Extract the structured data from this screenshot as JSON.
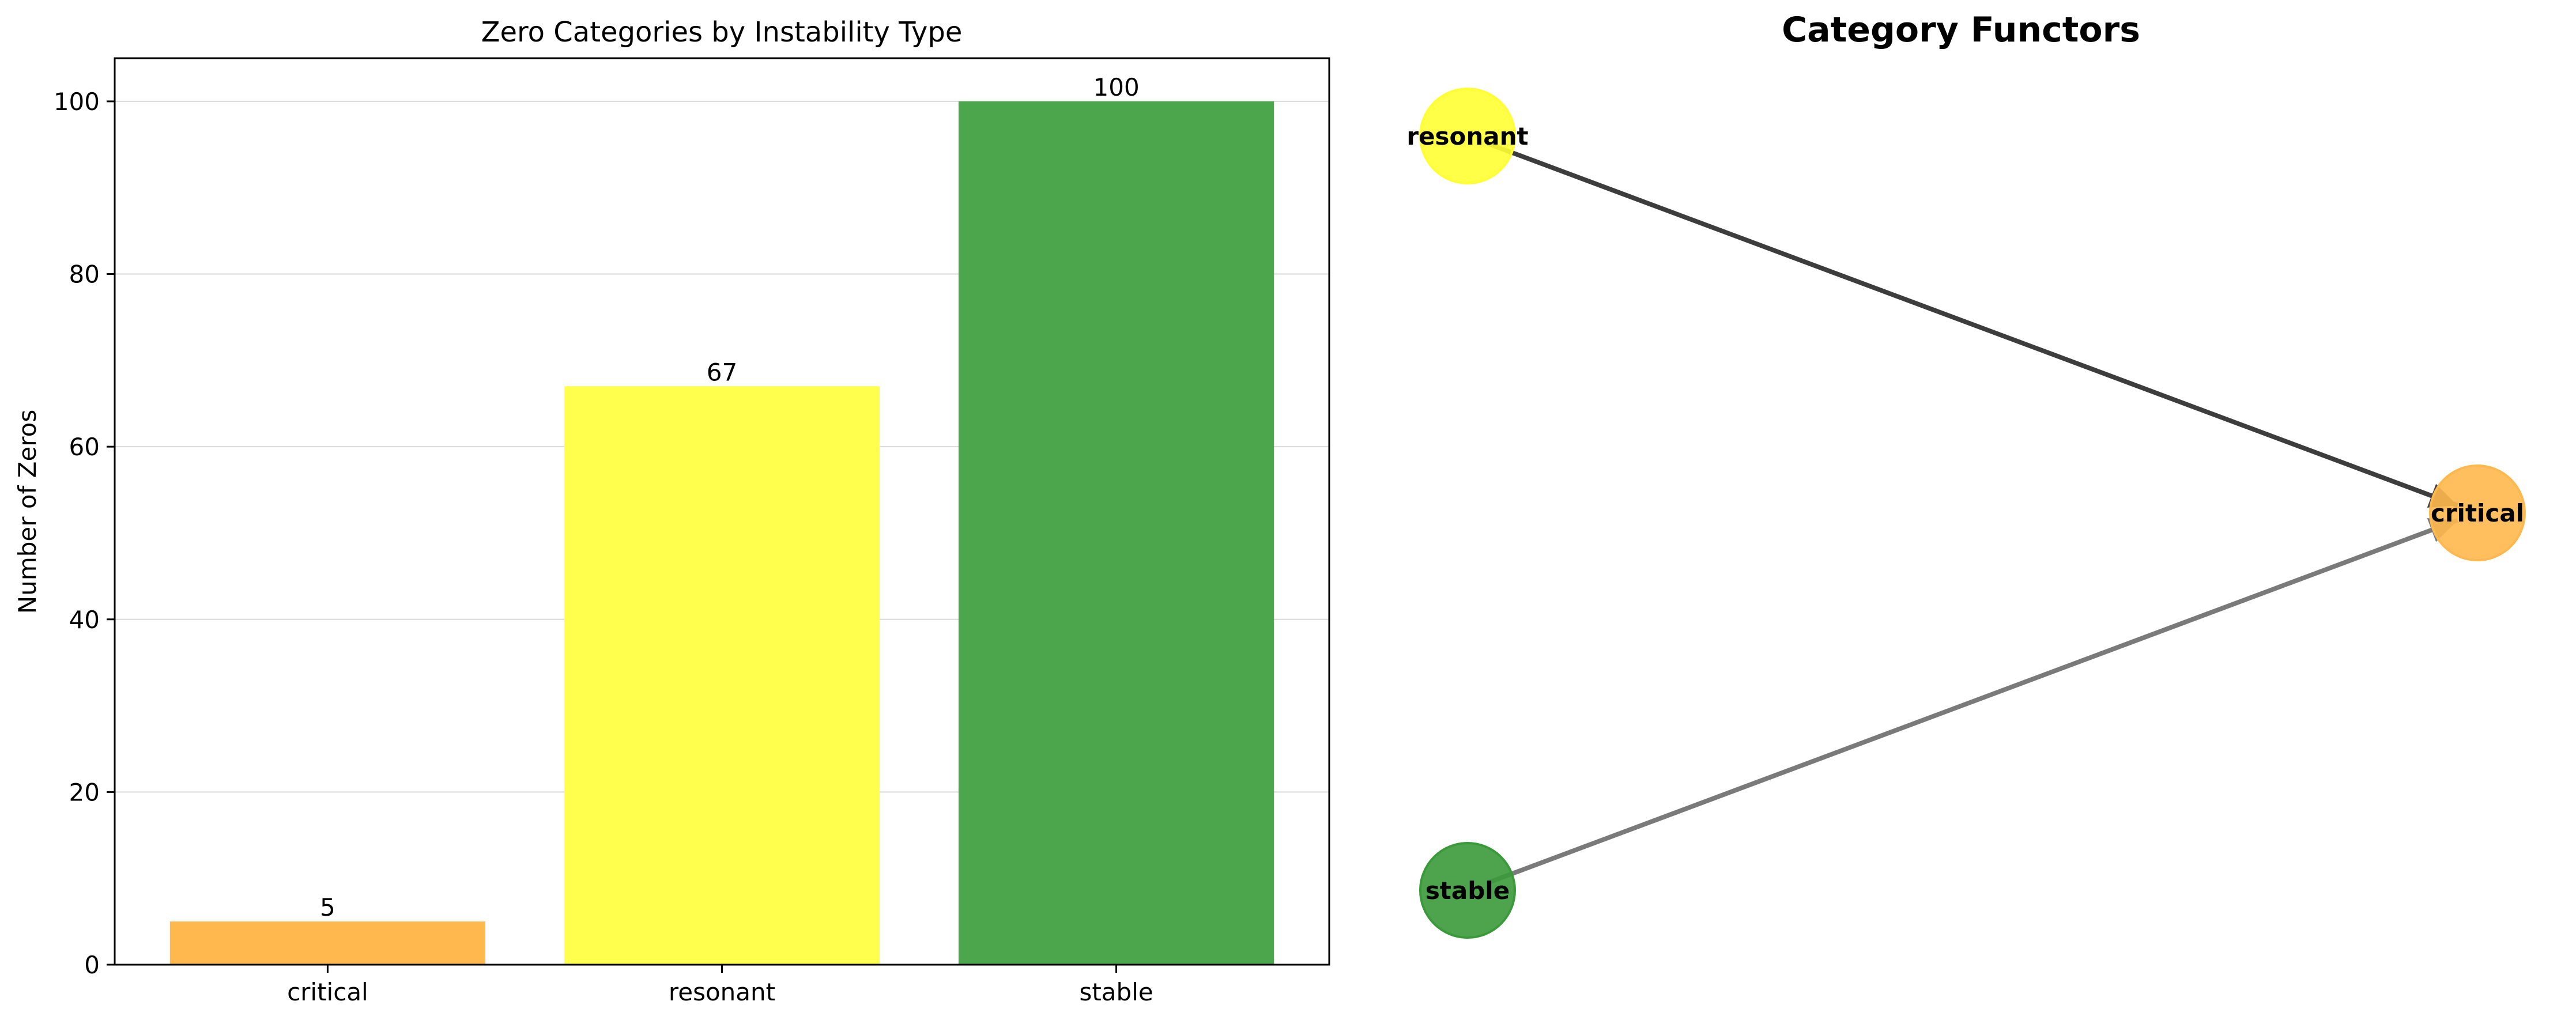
{
  "chart_data": [
    {
      "type": "bar",
      "title": "Zero Categories by Instability Type",
      "xlabel": "",
      "ylabel": "Number of Zeros",
      "categories": [
        "critical",
        "resonant",
        "stable"
      ],
      "values": [
        5,
        67,
        100
      ],
      "value_labels": [
        "5",
        "67",
        "100"
      ],
      "colors": [
        "#FFB84D",
        "#FFFF4D",
        "#4CA64C"
      ],
      "ylim": [
        0,
        105
      ],
      "yticks": [
        0,
        20,
        40,
        60,
        80,
        100
      ],
      "ytick_labels": [
        "0",
        "20",
        "40",
        "60",
        "80",
        "100"
      ],
      "grid": "y"
    },
    {
      "type": "diagram",
      "title": "Category Functors",
      "nodes": [
        {
          "id": "resonant",
          "label": "resonant",
          "color": "#FFFF33"
        },
        {
          "id": "critical",
          "label": "critical",
          "color": "#FFB84D"
        },
        {
          "id": "stable",
          "label": "stable",
          "color": "#3A9A3A"
        }
      ],
      "edges": [
        {
          "from": "resonant",
          "to": "critical",
          "color": "#3D3D3D"
        },
        {
          "from": "stable",
          "to": "critical",
          "color": "#7A7A7A"
        }
      ]
    }
  ]
}
